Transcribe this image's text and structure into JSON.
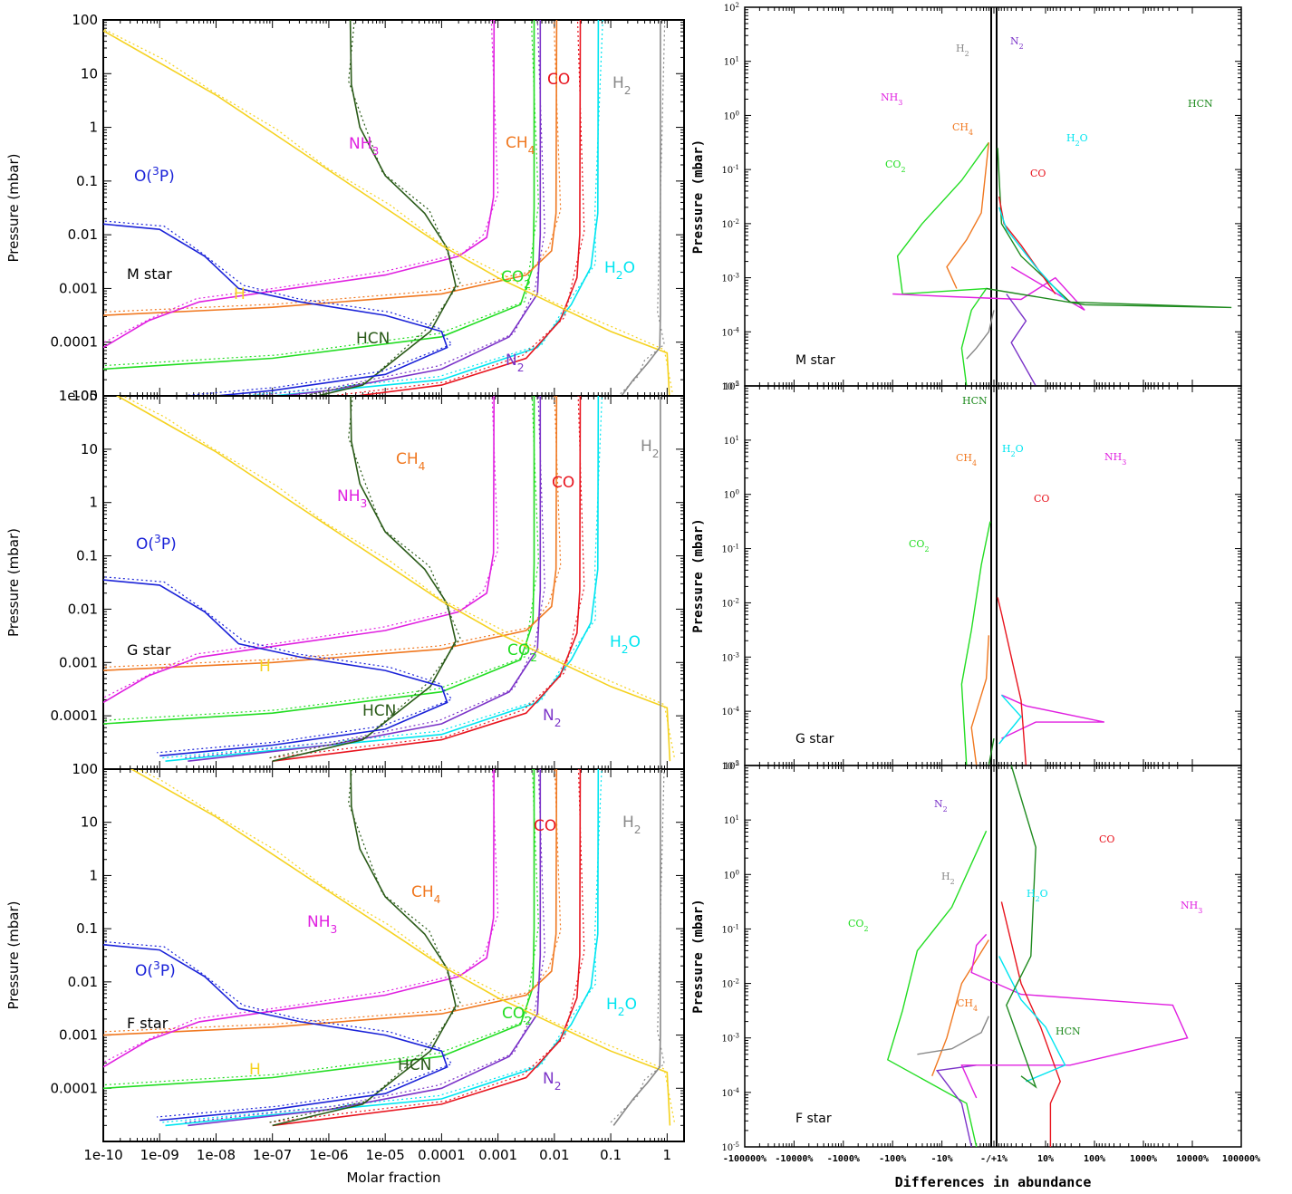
{
  "colors": {
    "H2": "#888888",
    "H": "#f5d220",
    "H2O": "#00e5f0",
    "CO": "#e8141e",
    "CO2": "#22dd22",
    "CH4": "#f07820",
    "NH3": "#e020e0",
    "N2": "#7b33c8",
    "HCN": "#2a5a18",
    "O3P": "#1a22d8",
    "HCN_right": "#1e8a1e"
  },
  "chart_data": [
    {
      "panel": "left-M",
      "type": "line",
      "x_scale": "log",
      "y_scale": "log-inverted",
      "xlim": [
        1e-10,
        2
      ],
      "ylim": [
        100,
        1e-05
      ],
      "ylabel": "Pressure (mbar)",
      "ytick_labels": [
        "1e-05",
        "0.0001",
        "0.001",
        "0.01",
        "0.1",
        "1",
        "10",
        "100"
      ],
      "panel_label": "M star",
      "species_labels": [
        {
          "key": "CO",
          "text": "CO"
        },
        {
          "key": "H2",
          "text": "H2"
        },
        {
          "key": "CH4",
          "text": "CH4"
        },
        {
          "key": "NH3",
          "text": "NH3"
        },
        {
          "key": "O3P",
          "text": "O(3P)"
        },
        {
          "key": "CO2",
          "text": "CO2"
        },
        {
          "key": "H2O",
          "text": "H2O"
        },
        {
          "key": "H",
          "text": "H"
        },
        {
          "key": "HCN",
          "text": "HCN"
        },
        {
          "key": "N2",
          "text": "N2"
        }
      ]
    },
    {
      "panel": "left-G",
      "type": "line",
      "x_scale": "log",
      "y_scale": "log-inverted",
      "xlim": [
        1e-10,
        2
      ],
      "ylim": [
        100,
        1e-05
      ],
      "ylabel": "Pressure (mbar)",
      "ytick_labels": [
        "",
        "0.0001",
        "0.001",
        "0.01",
        "0.1",
        "1",
        "10",
        "100"
      ],
      "panel_label": "G star",
      "species_labels": [
        {
          "key": "H2",
          "text": "H2"
        },
        {
          "key": "CH4",
          "text": "CH4"
        },
        {
          "key": "CO",
          "text": "CO"
        },
        {
          "key": "NH3",
          "text": "NH3"
        },
        {
          "key": "O3P",
          "text": "O(3P)"
        },
        {
          "key": "CO2",
          "text": "CO2"
        },
        {
          "key": "H2O",
          "text": "H2O"
        },
        {
          "key": "H",
          "text": "H"
        },
        {
          "key": "HCN",
          "text": "HCN"
        },
        {
          "key": "N2",
          "text": "N2"
        }
      ]
    },
    {
      "panel": "left-F",
      "type": "line",
      "x_scale": "log",
      "y_scale": "log-inverted",
      "xlim": [
        1e-10,
        2
      ],
      "ylim": [
        100,
        1e-05
      ],
      "xlabel": "Molar fraction",
      "xtick_labels": [
        "1e-10",
        "1e-09",
        "1e-08",
        "1e-07",
        "1e-06",
        "1e-05",
        "0.0001",
        "0.001",
        "0.01",
        "0.1",
        "1"
      ],
      "ylabel": "Pressure (mbar)",
      "ytick_labels": [
        "",
        "0.0001",
        "0.001",
        "0.01",
        "0.1",
        "1",
        "10",
        "100"
      ],
      "panel_label": "F star",
      "species_labels": [
        {
          "key": "CO",
          "text": "CO"
        },
        {
          "key": "H2",
          "text": "H2"
        },
        {
          "key": "CH4",
          "text": "CH4"
        },
        {
          "key": "NH3",
          "text": "NH3"
        },
        {
          "key": "O3P",
          "text": "O(3P)"
        },
        {
          "key": "CO2",
          "text": "CO2"
        },
        {
          "key": "H2O",
          "text": "H2O"
        },
        {
          "key": "H",
          "text": "H"
        },
        {
          "key": "HCN",
          "text": "HCN"
        },
        {
          "key": "N2",
          "text": "N2"
        }
      ]
    },
    {
      "panel": "right-M",
      "type": "line",
      "y_scale": "log-inverted",
      "ylim": [
        100,
        1e-05
      ],
      "ylabel": "Pressure (mbar)",
      "panel_label": "M star",
      "species_labels": [
        {
          "key": "H2",
          "text": "H2"
        },
        {
          "key": "N2",
          "text": "N2"
        },
        {
          "key": "NH3",
          "text": "NH3"
        },
        {
          "key": "HCN_right",
          "text": "HCN"
        },
        {
          "key": "CH4",
          "text": "CH4"
        },
        {
          "key": "H2O",
          "text": "H2O"
        },
        {
          "key": "CO2",
          "text": "CO2"
        },
        {
          "key": "CO",
          "text": "CO"
        }
      ]
    },
    {
      "panel": "right-G",
      "type": "line",
      "y_scale": "log-inverted",
      "ylim": [
        100,
        1e-05
      ],
      "ylabel": "Pressure (mbar)",
      "panel_label": "G star",
      "species_labels": [
        {
          "key": "HCN_right",
          "text": "HCN"
        },
        {
          "key": "H2O",
          "text": "H2O"
        },
        {
          "key": "NH3",
          "text": "NH3"
        },
        {
          "key": "CH4",
          "text": "CH4"
        },
        {
          "key": "CO",
          "text": "CO"
        },
        {
          "key": "CO2",
          "text": "CO2"
        }
      ]
    },
    {
      "panel": "right-F",
      "type": "line",
      "y_scale": "log-inverted",
      "ylim": [
        100,
        1e-05
      ],
      "ylabel": "Pressure (mbar)",
      "xlabel": "Differences in abundance",
      "xtick_labels": [
        "-100000%",
        "-10000%",
        "-1000%",
        "-100%",
        "-10%",
        "-/+1%",
        "10%",
        "100%",
        "1000%",
        "10000%",
        "100000%"
      ],
      "panel_label": "F star",
      "species_labels": [
        {
          "key": "N2",
          "text": "N2"
        },
        {
          "key": "CO",
          "text": "CO"
        },
        {
          "key": "H2",
          "text": "H2"
        },
        {
          "key": "H2O",
          "text": "H2O"
        },
        {
          "key": "NH3",
          "text": "NH3"
        },
        {
          "key": "CO2",
          "text": "CO2"
        },
        {
          "key": "CH4",
          "text": "CH4"
        },
        {
          "key": "HCN_right",
          "text": "HCN"
        }
      ]
    }
  ]
}
